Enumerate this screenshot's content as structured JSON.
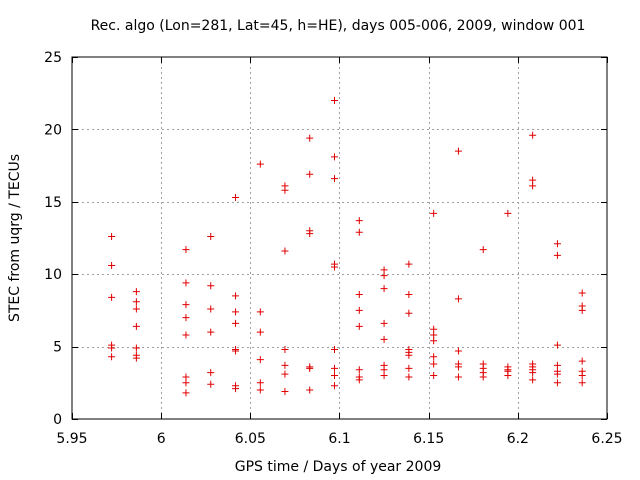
{
  "chart_data": {
    "type": "scatter",
    "title": "Rec. algo (Lon=281, Lat=45, h=HE), days 005-006, 2009, window 001",
    "xlabel": "GPS time / Days of year 2009",
    "ylabel": "STEC from uqrg / TECUs",
    "xlim": [
      5.95,
      6.25
    ],
    "ylim": [
      0,
      25
    ],
    "xticks": [
      5.95,
      6,
      6.05,
      6.1,
      6.15,
      6.2,
      6.25
    ],
    "xtick_labels": [
      "5.95",
      "6",
      "6.05",
      "6.1",
      "6.15",
      "6.2",
      "6.25"
    ],
    "yticks": [
      0,
      5,
      10,
      15,
      20,
      25
    ],
    "ytick_labels": [
      "0",
      "5",
      "10",
      "15",
      "20",
      "25"
    ],
    "grid": true,
    "marker": "plus",
    "colors": {
      "points": "#e00000",
      "grid": "#a0a0a0",
      "axes": "#000000"
    },
    "series": [
      {
        "name": "STEC",
        "points": [
          [
            5.9722,
            12.6
          ],
          [
            5.9722,
            10.6
          ],
          [
            5.9722,
            8.4
          ],
          [
            5.9722,
            5.1
          ],
          [
            5.9722,
            4.9
          ],
          [
            5.9722,
            4.3
          ],
          [
            5.9861,
            8.8
          ],
          [
            5.9861,
            8.1
          ],
          [
            5.9861,
            7.6
          ],
          [
            5.9861,
            6.4
          ],
          [
            5.9861,
            4.9
          ],
          [
            5.9861,
            4.4
          ],
          [
            5.9861,
            4.2
          ],
          [
            6.0139,
            11.7
          ],
          [
            6.0139,
            9.4
          ],
          [
            6.0139,
            7.9
          ],
          [
            6.0139,
            7.0
          ],
          [
            6.0139,
            5.8
          ],
          [
            6.0139,
            2.9
          ],
          [
            6.0139,
            2.5
          ],
          [
            6.0139,
            1.8
          ],
          [
            6.0278,
            12.6
          ],
          [
            6.0278,
            9.2
          ],
          [
            6.0278,
            7.6
          ],
          [
            6.0278,
            6.0
          ],
          [
            6.0278,
            3.2
          ],
          [
            6.0278,
            2.4
          ],
          [
            6.0417,
            15.3
          ],
          [
            6.0417,
            8.5
          ],
          [
            6.0417,
            7.4
          ],
          [
            6.0417,
            6.6
          ],
          [
            6.0417,
            4.8
          ],
          [
            6.0417,
            4.7
          ],
          [
            6.0417,
            2.3
          ],
          [
            6.0417,
            2.1
          ],
          [
            6.0556,
            17.6
          ],
          [
            6.0556,
            7.4
          ],
          [
            6.0556,
            6.0
          ],
          [
            6.0556,
            4.1
          ],
          [
            6.0556,
            2.5
          ],
          [
            6.0556,
            2.0
          ],
          [
            6.0694,
            16.1
          ],
          [
            6.0694,
            15.8
          ],
          [
            6.0694,
            11.6
          ],
          [
            6.0694,
            4.8
          ],
          [
            6.0694,
            3.7
          ],
          [
            6.0694,
            3.1
          ],
          [
            6.0694,
            1.9
          ],
          [
            6.0833,
            19.4
          ],
          [
            6.0833,
            16.9
          ],
          [
            6.0833,
            13.0
          ],
          [
            6.0833,
            12.8
          ],
          [
            6.0833,
            3.6
          ],
          [
            6.0833,
            3.5
          ],
          [
            6.0833,
            2.0
          ],
          [
            6.0972,
            22.0
          ],
          [
            6.0972,
            18.1
          ],
          [
            6.0972,
            16.6
          ],
          [
            6.0972,
            10.7
          ],
          [
            6.0972,
            10.5
          ],
          [
            6.0972,
            4.8
          ],
          [
            6.0972,
            3.5
          ],
          [
            6.0972,
            3.0
          ],
          [
            6.0972,
            2.3
          ],
          [
            6.1111,
            13.7
          ],
          [
            6.1111,
            12.9
          ],
          [
            6.1111,
            8.6
          ],
          [
            6.1111,
            7.5
          ],
          [
            6.1111,
            6.4
          ],
          [
            6.1111,
            3.4
          ],
          [
            6.1111,
            2.9
          ],
          [
            6.1111,
            2.7
          ],
          [
            6.125,
            10.3
          ],
          [
            6.125,
            9.9
          ],
          [
            6.125,
            9.0
          ],
          [
            6.125,
            6.6
          ],
          [
            6.125,
            5.5
          ],
          [
            6.125,
            3.7
          ],
          [
            6.125,
            3.4
          ],
          [
            6.125,
            3.0
          ],
          [
            6.1389,
            10.7
          ],
          [
            6.1389,
            8.6
          ],
          [
            6.1389,
            7.3
          ],
          [
            6.1389,
            4.8
          ],
          [
            6.1389,
            4.6
          ],
          [
            6.1389,
            4.4
          ],
          [
            6.1389,
            3.5
          ],
          [
            6.1389,
            2.9
          ],
          [
            6.1528,
            14.2
          ],
          [
            6.1528,
            6.2
          ],
          [
            6.1528,
            5.8
          ],
          [
            6.1528,
            5.4
          ],
          [
            6.1528,
            4.3
          ],
          [
            6.1528,
            3.8
          ],
          [
            6.1528,
            3.0
          ],
          [
            6.1667,
            18.5
          ],
          [
            6.1667,
            8.3
          ],
          [
            6.1667,
            4.7
          ],
          [
            6.1667,
            3.8
          ],
          [
            6.1667,
            3.6
          ],
          [
            6.1667,
            2.9
          ],
          [
            6.1806,
            11.7
          ],
          [
            6.1806,
            3.8
          ],
          [
            6.1806,
            3.5
          ],
          [
            6.1806,
            3.2
          ],
          [
            6.1806,
            2.9
          ],
          [
            6.1944,
            14.2
          ],
          [
            6.1944,
            3.6
          ],
          [
            6.1944,
            3.4
          ],
          [
            6.1944,
            3.3
          ],
          [
            6.1944,
            3.0
          ],
          [
            6.2083,
            19.6
          ],
          [
            6.2083,
            16.5
          ],
          [
            6.2083,
            16.1
          ],
          [
            6.2083,
            3.8
          ],
          [
            6.2083,
            3.6
          ],
          [
            6.2083,
            3.4
          ],
          [
            6.2083,
            3.2
          ],
          [
            6.2083,
            2.7
          ],
          [
            6.2222,
            12.1
          ],
          [
            6.2222,
            11.3
          ],
          [
            6.2222,
            5.1
          ],
          [
            6.2222,
            3.7
          ],
          [
            6.2222,
            3.3
          ],
          [
            6.2222,
            3.1
          ],
          [
            6.2222,
            2.5
          ],
          [
            6.2361,
            8.7
          ],
          [
            6.2361,
            7.8
          ],
          [
            6.2361,
            7.5
          ],
          [
            6.2361,
            4.0
          ],
          [
            6.2361,
            3.3
          ],
          [
            6.2361,
            3.0
          ],
          [
            6.2361,
            2.5
          ]
        ]
      }
    ]
  }
}
